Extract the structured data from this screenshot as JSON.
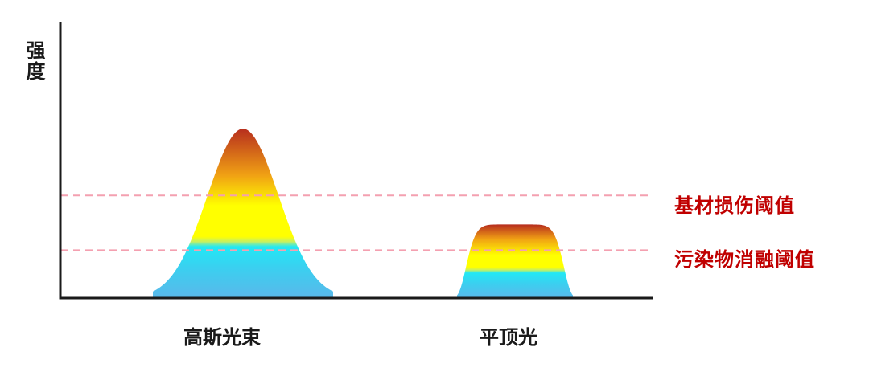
{
  "axis": {
    "y_label": "强度"
  },
  "beams": [
    {
      "name": "高斯光束",
      "shape": "gaussian",
      "peak_intensity": 0.99
    },
    {
      "name": "平顶光",
      "shape": "flat-top",
      "peak_intensity": 0.43
    }
  ],
  "thresholds": [
    {
      "label": "基材损伤阈值",
      "intensity": 0.6
    },
    {
      "label": "污染物消融阈值",
      "intensity": 0.28
    }
  ],
  "colors": {
    "axis": "#1a1a1a",
    "threshold_line": "#f4a0b0",
    "threshold_text": "#c00000",
    "gradient_bottom": "#5ab8ea",
    "gradient_cyan": "#22e8f5",
    "gradient_yellow": "#ffff00",
    "gradient_orange": "#f0a014",
    "gradient_top": "#b52a1e"
  }
}
